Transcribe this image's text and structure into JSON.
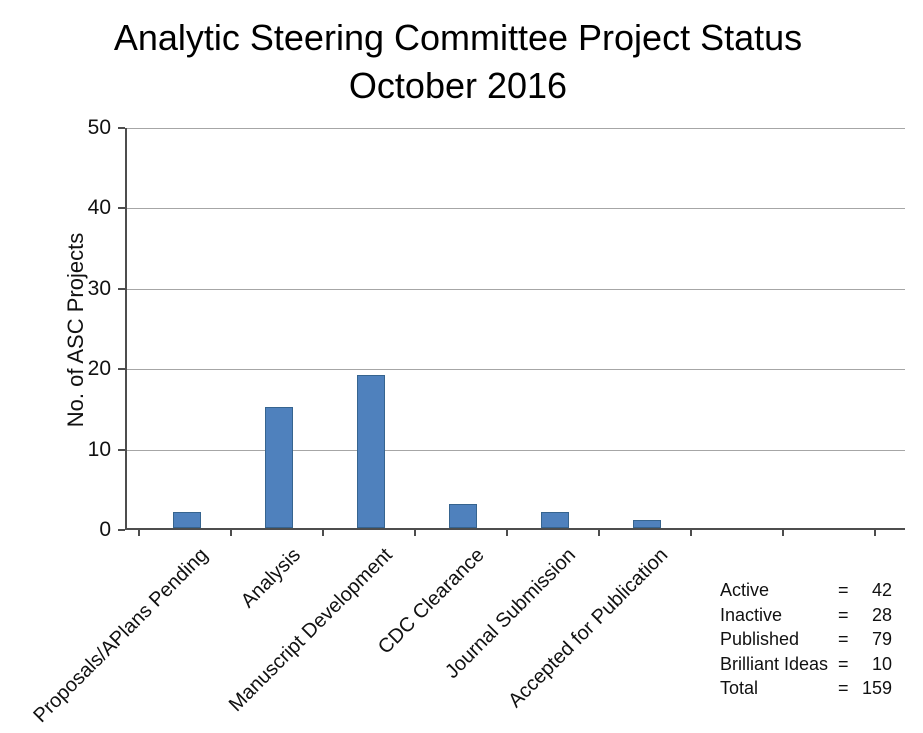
{
  "title": {
    "line1": "Analytic Steering Committee Project Status",
    "line2": "October 2016"
  },
  "chart_data": {
    "type": "bar",
    "title": "Analytic Steering Committee Project Status October 2016",
    "categories": [
      "Proposals/APlans Pending",
      "Analysis",
      "Manuscript Development",
      "CDC Clearance",
      "Journal Submission",
      "Accepted for Publication"
    ],
    "values": [
      2,
      15,
      19,
      3,
      2,
      1
    ],
    "xlabel": "",
    "ylabel": "No. of ASC Projects",
    "ylim": [
      0,
      50
    ],
    "yticks": [
      0,
      10,
      20,
      30,
      40,
      50
    ],
    "grid": true,
    "legend_position": "none",
    "bar_color": "#4f81bd",
    "annotations": [
      "Active = 42",
      "Inactive = 28",
      "Published = 79",
      "Brilliant Ideas = 10",
      "Total = 159"
    ]
  },
  "stats": {
    "rows": [
      {
        "label": "Active",
        "eq": "=",
        "value": "42"
      },
      {
        "label": "Inactive",
        "eq": "=",
        "value": "28"
      },
      {
        "label": "Published",
        "eq": "=",
        "value": "79"
      },
      {
        "label": "Brilliant Ideas",
        "eq": "=",
        "value": "10"
      },
      {
        "label": "Total",
        "eq": "=",
        "value": "159"
      }
    ]
  }
}
